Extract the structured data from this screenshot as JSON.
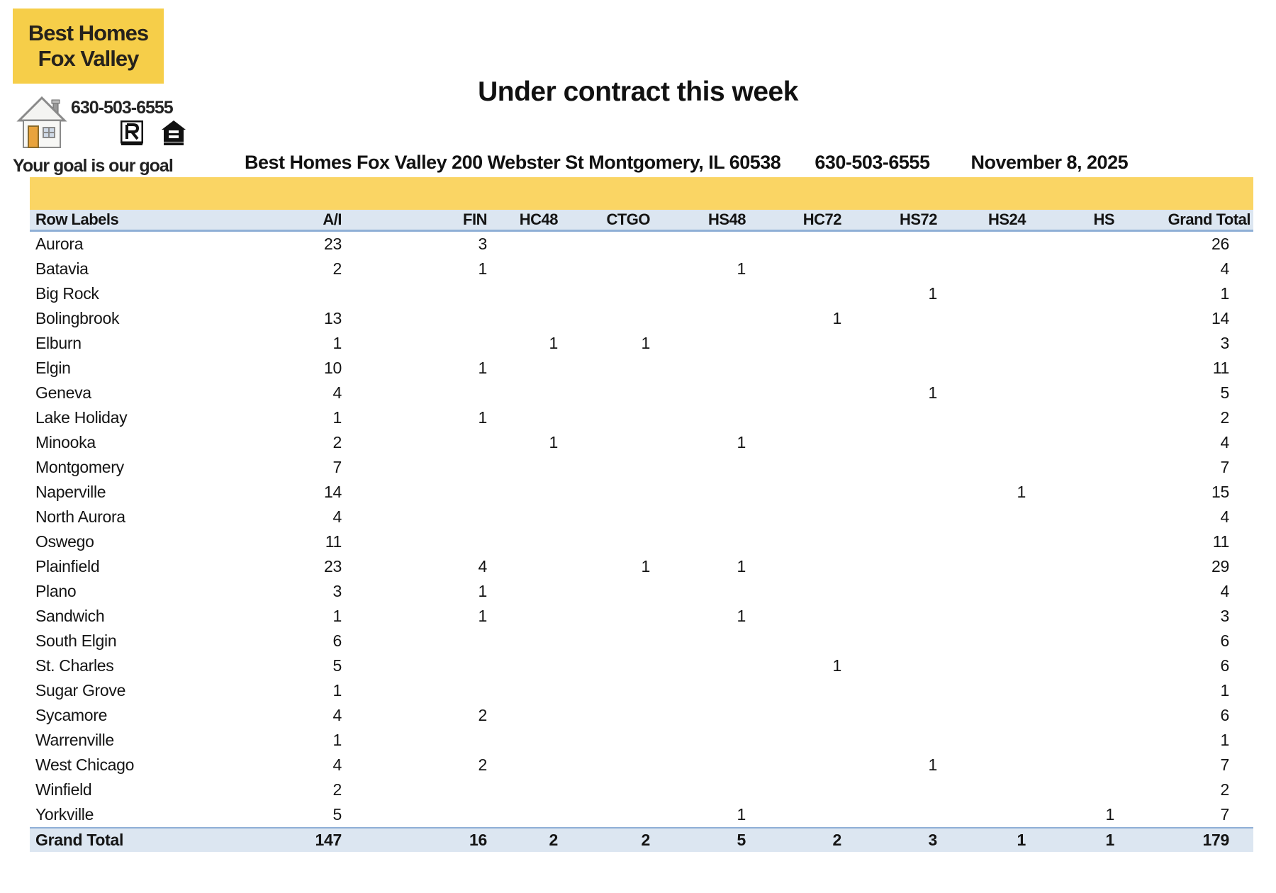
{
  "logo": {
    "line1": "Best Homes",
    "line2": "Fox Valley",
    "phone": "630-503-6555",
    "tagline": "Your goal is our goal",
    "icons": [
      "house-clipart-icon",
      "realtor-icon",
      "equal-housing-icon"
    ]
  },
  "page": {
    "title": "Under contract this week",
    "company_address": "Best Homes Fox Valley 200 Webster St Montgomery, IL 60538",
    "phone": "630-503-6555",
    "date": "November 8, 2025"
  },
  "table": {
    "columns": [
      "Row Labels",
      "A/I",
      "FIN",
      "HC48",
      "CTGO",
      "HS48",
      "HC72",
      "HS72",
      "HS24",
      "HS",
      "Grand Total"
    ],
    "rows": [
      {
        "label": "Aurora",
        "values": [
          "23",
          "3",
          "",
          "",
          "",
          "",
          "",
          "",
          "",
          "26"
        ]
      },
      {
        "label": "Batavia",
        "values": [
          "2",
          "1",
          "",
          "",
          "1",
          "",
          "",
          "",
          "",
          "4"
        ]
      },
      {
        "label": "Big Rock",
        "values": [
          "",
          "",
          "",
          "",
          "",
          "",
          "1",
          "",
          "",
          "1"
        ]
      },
      {
        "label": "Bolingbrook",
        "values": [
          "13",
          "",
          "",
          "",
          "",
          "1",
          "",
          "",
          "",
          "14"
        ]
      },
      {
        "label": "Elburn",
        "values": [
          "1",
          "",
          "1",
          "1",
          "",
          "",
          "",
          "",
          "",
          "3"
        ]
      },
      {
        "label": "Elgin",
        "values": [
          "10",
          "1",
          "",
          "",
          "",
          "",
          "",
          "",
          "",
          "11"
        ]
      },
      {
        "label": "Geneva",
        "values": [
          "4",
          "",
          "",
          "",
          "",
          "",
          "1",
          "",
          "",
          "5"
        ]
      },
      {
        "label": "Lake Holiday",
        "values": [
          "1",
          "1",
          "",
          "",
          "",
          "",
          "",
          "",
          "",
          "2"
        ]
      },
      {
        "label": "Minooka",
        "values": [
          "2",
          "",
          "1",
          "",
          "1",
          "",
          "",
          "",
          "",
          "4"
        ]
      },
      {
        "label": "Montgomery",
        "values": [
          "7",
          "",
          "",
          "",
          "",
          "",
          "",
          "",
          "",
          "7"
        ]
      },
      {
        "label": "Naperville",
        "values": [
          "14",
          "",
          "",
          "",
          "",
          "",
          "",
          "1",
          "",
          "15"
        ]
      },
      {
        "label": "North Aurora",
        "values": [
          "4",
          "",
          "",
          "",
          "",
          "",
          "",
          "",
          "",
          "4"
        ]
      },
      {
        "label": "Oswego",
        "values": [
          "11",
          "",
          "",
          "",
          "",
          "",
          "",
          "",
          "",
          "11"
        ]
      },
      {
        "label": "Plainfield",
        "values": [
          "23",
          "4",
          "",
          "1",
          "1",
          "",
          "",
          "",
          "",
          "29"
        ]
      },
      {
        "label": "Plano",
        "values": [
          "3",
          "1",
          "",
          "",
          "",
          "",
          "",
          "",
          "",
          "4"
        ]
      },
      {
        "label": "Sandwich",
        "values": [
          "1",
          "1",
          "",
          "",
          "1",
          "",
          "",
          "",
          "",
          "3"
        ]
      },
      {
        "label": "South Elgin",
        "values": [
          "6",
          "",
          "",
          "",
          "",
          "",
          "",
          "",
          "",
          "6"
        ]
      },
      {
        "label": "St. Charles",
        "values": [
          "5",
          "",
          "",
          "",
          "",
          "1",
          "",
          "",
          "",
          "6"
        ]
      },
      {
        "label": "Sugar Grove",
        "values": [
          "1",
          "",
          "",
          "",
          "",
          "",
          "",
          "",
          "",
          "1"
        ]
      },
      {
        "label": "Sycamore",
        "values": [
          "4",
          "2",
          "",
          "",
          "",
          "",
          "",
          "",
          "",
          "6"
        ]
      },
      {
        "label": "Warrenville",
        "values": [
          "1",
          "",
          "",
          "",
          "",
          "",
          "",
          "",
          "",
          "1"
        ]
      },
      {
        "label": "West Chicago",
        "values": [
          "4",
          "2",
          "",
          "",
          "",
          "",
          "1",
          "",
          "",
          "7"
        ]
      },
      {
        "label": "Winfield",
        "values": [
          "2",
          "",
          "",
          "",
          "",
          "",
          "",
          "",
          "",
          "2"
        ]
      },
      {
        "label": "Yorkville",
        "values": [
          "5",
          "",
          "",
          "",
          "1",
          "",
          "",
          "",
          "1",
          "7"
        ]
      }
    ],
    "total": {
      "label": "Grand Total",
      "values": [
        "147",
        "16",
        "2",
        "2",
        "5",
        "2",
        "3",
        "1",
        "1",
        "179"
      ]
    }
  },
  "colors": {
    "logo_yellow": "#F6CE49",
    "band_yellow": "#FAD564",
    "header_blue": "#DCE6F1",
    "rule_blue": "#8FAFD6"
  }
}
